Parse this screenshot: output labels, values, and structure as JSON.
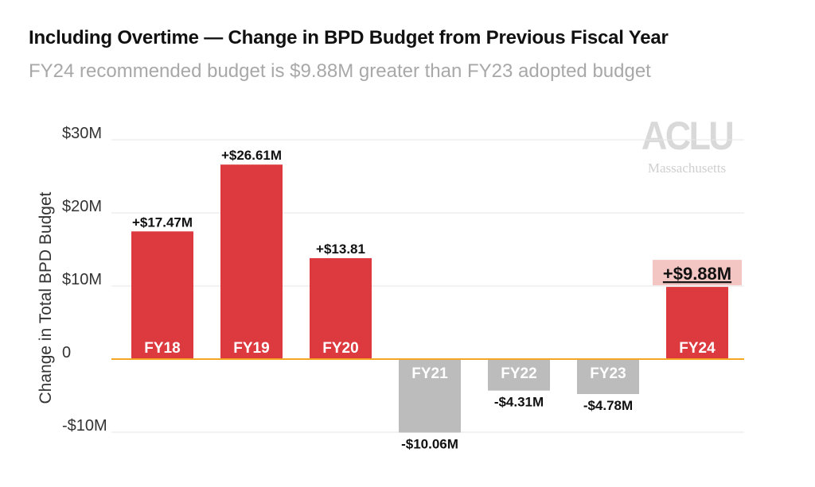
{
  "header": {
    "title": "Including Overtime — Change in BPD Budget from Previous Fiscal Year",
    "subtitle": "FY24 recommended budget is $9.88M greater than FY23 adopted budget"
  },
  "logo": {
    "main": "ACLU",
    "sub": "Massachusetts"
  },
  "colors": {
    "positive": "#dc3a3f",
    "negative": "#bcbcbc",
    "zero_line": "#f5a623",
    "highlight": "#f3c6c4",
    "grid": "#e6e6e6"
  },
  "chart_data": {
    "type": "bar",
    "categories": [
      "FY18",
      "FY19",
      "FY20",
      "FY21",
      "FY22",
      "FY23",
      "FY24"
    ],
    "values": [
      17.47,
      26.61,
      13.81,
      -10.06,
      -4.31,
      -4.78,
      9.88
    ],
    "data_labels": [
      "+$17.47M",
      "+$26.61M",
      "+$13.81",
      "-$10.06M",
      "-$4.31M",
      "-$4.78M",
      "+$9.88M"
    ],
    "highlight_index": 6,
    "ylabel": "Change in Total BPD Budget",
    "yticks": [
      -10,
      0,
      10,
      20,
      30
    ],
    "ytick_labels": [
      "-$10M",
      "0",
      "$10M",
      "$20M",
      "$30M"
    ],
    "ylim": [
      -10,
      30
    ],
    "grid": true
  }
}
